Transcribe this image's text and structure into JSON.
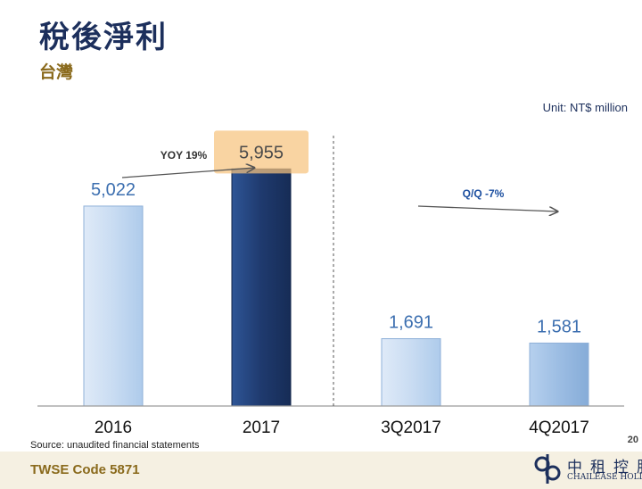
{
  "header": {
    "title": "稅後淨利",
    "subtitle": "台灣"
  },
  "unit_label": "Unit: NT$ million",
  "footer": {
    "source": "Source: unaudited financial statements",
    "page_number": "20",
    "code": "TWSE Code 5871",
    "brand_cn": "中租控股",
    "brand_en": "CHAILEASE HOLDIN"
  },
  "colors": {
    "title": "#1c2f5c",
    "subtitle": "#8a6a1c",
    "bar_light": "#c9dcf2",
    "bar_dark": "#1f3a6e",
    "bar_medium": "#9cbde3",
    "value_label": "#3c6fb0",
    "highlight": "#f6c47e"
  },
  "chart_data": {
    "type": "bar",
    "categories": [
      "2016",
      "2017",
      "3Q2017",
      "4Q2017"
    ],
    "values": [
      5022,
      5955,
      1691,
      1581
    ],
    "value_labels": [
      "5,022",
      "5,955",
      "1,691",
      "1,581"
    ],
    "title": "",
    "xlabel": "",
    "ylabel": "",
    "ylim": [
      0,
      6500
    ],
    "grid": false,
    "annotations": [
      {
        "text": "YOY 19%",
        "from": "2016",
        "to": "2017"
      },
      {
        "text": "Q/Q -7%",
        "from": "3Q2017",
        "to": "4Q2017"
      }
    ]
  }
}
